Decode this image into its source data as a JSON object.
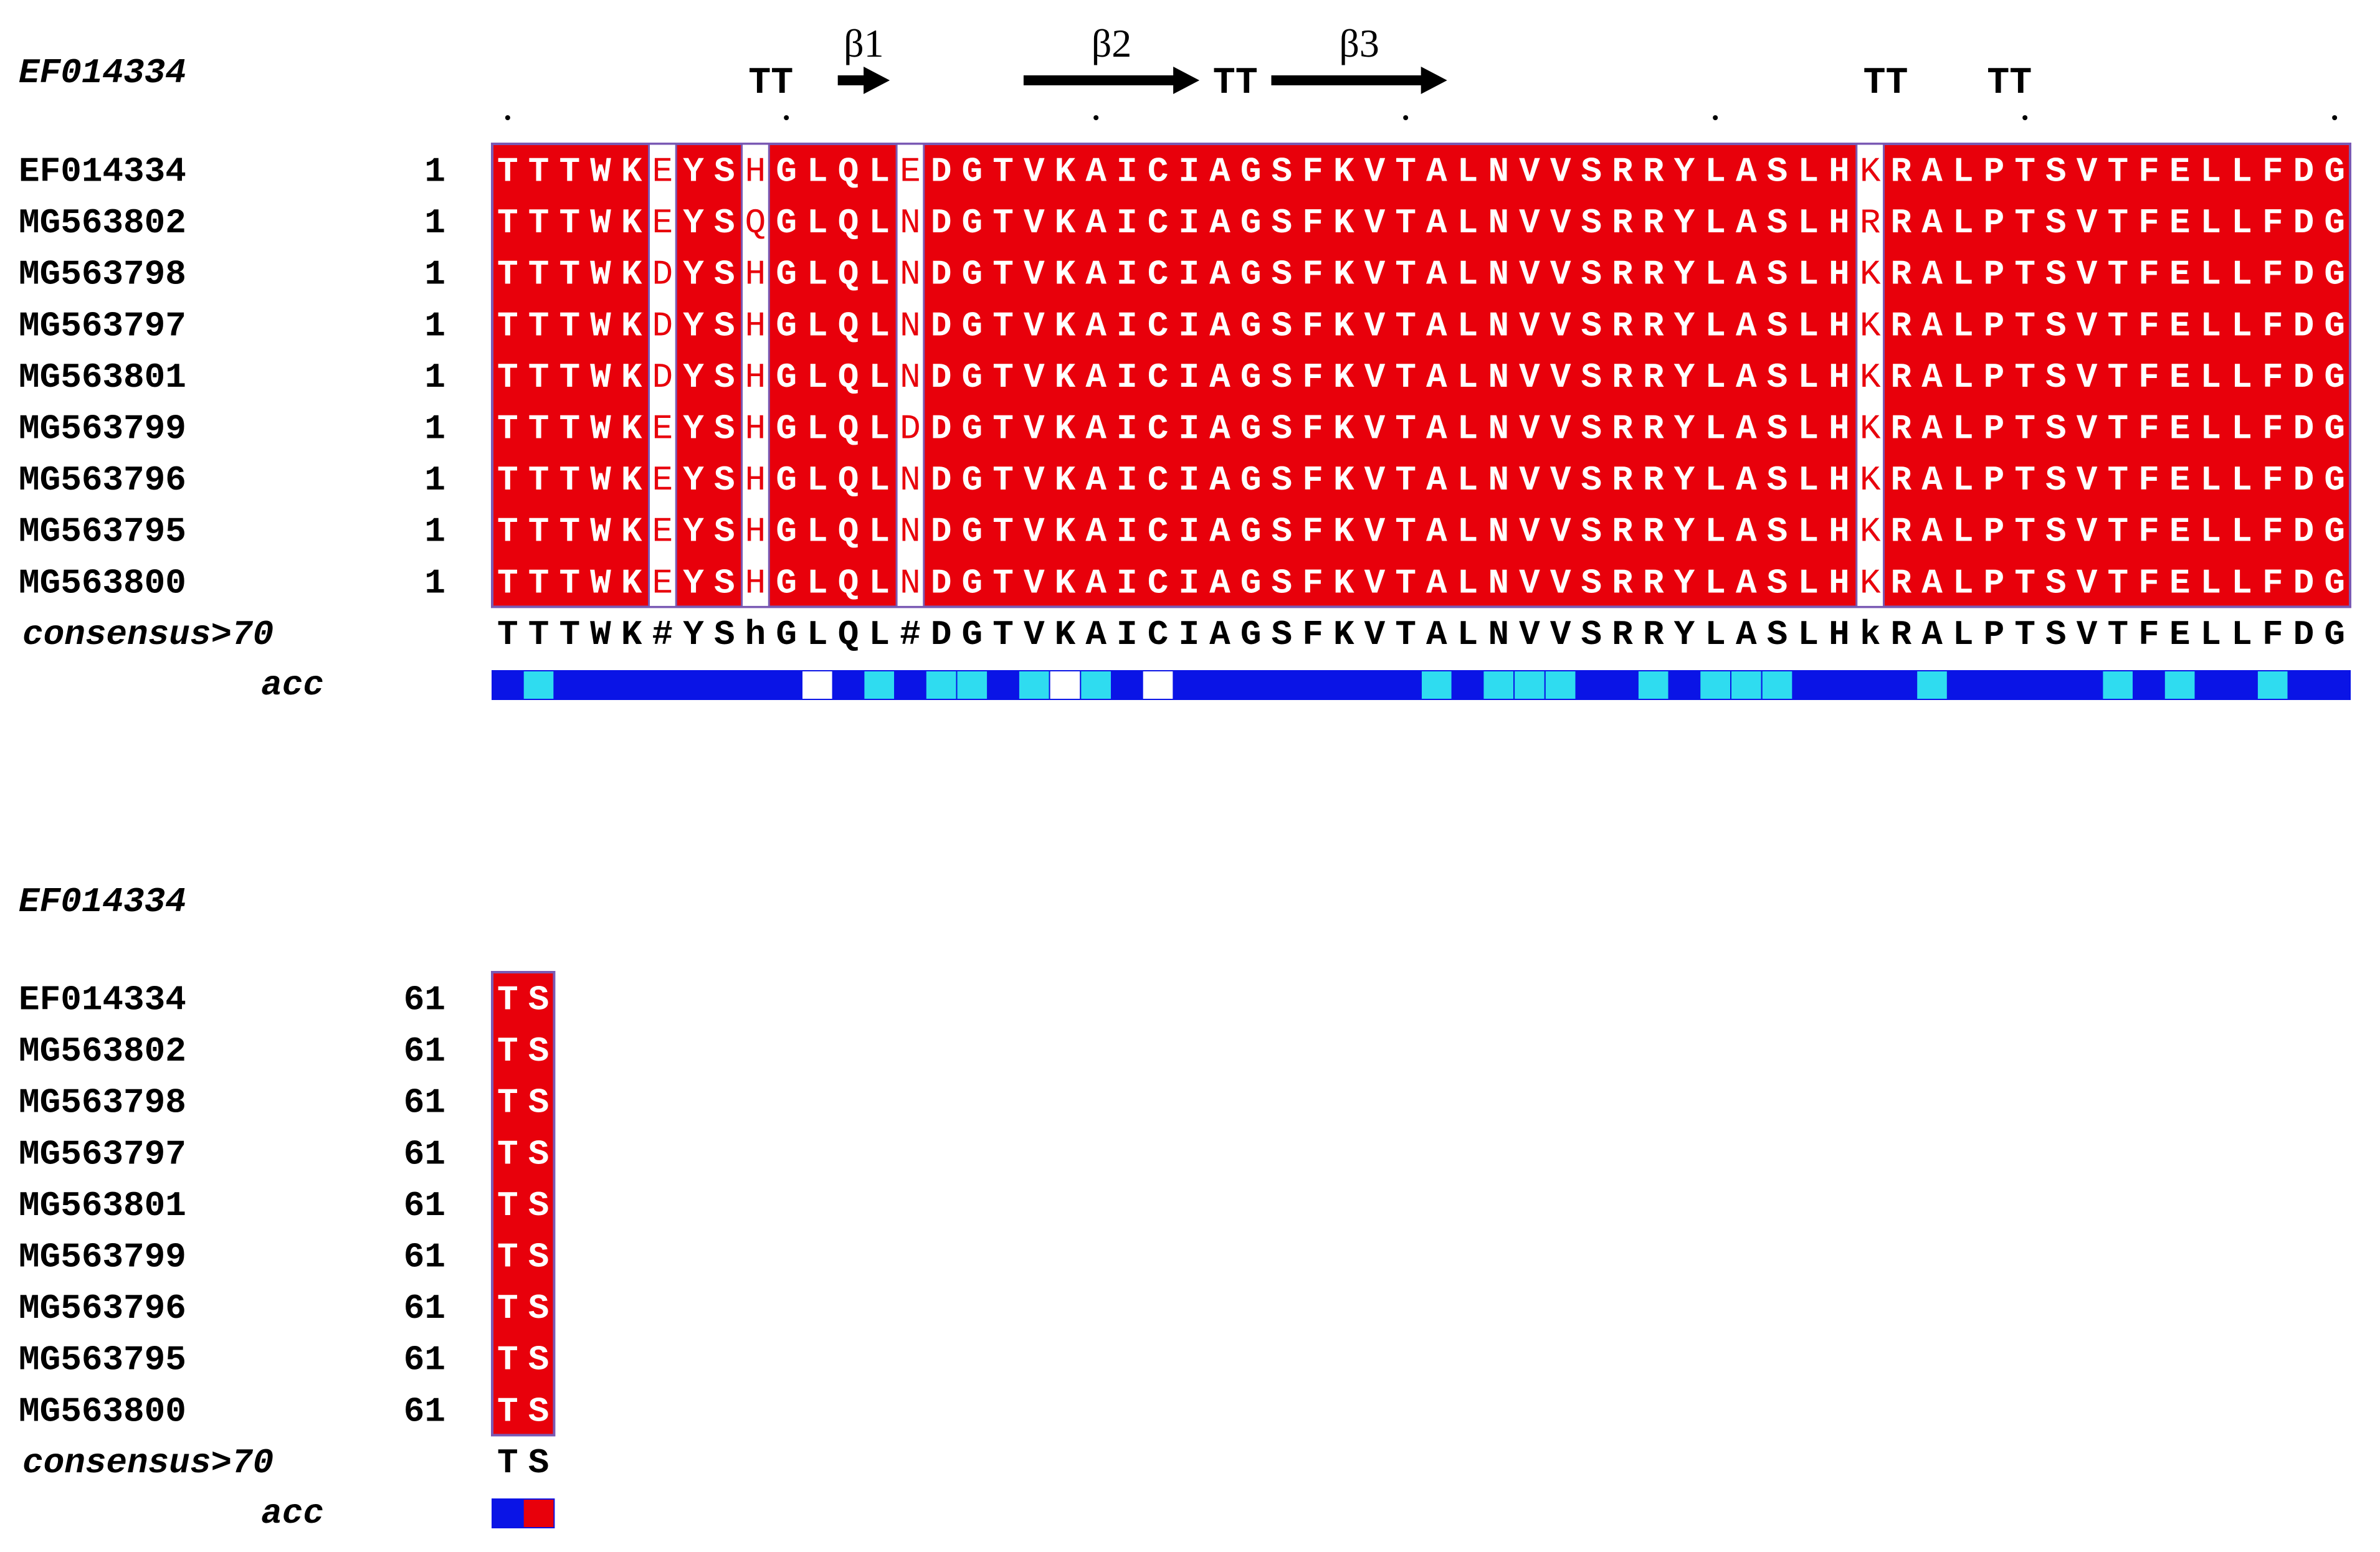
{
  "alignment": {
    "reference_label": "EF014334",
    "consensus_label": "consensus>70",
    "acc_label": "acc",
    "colors": {
      "conserved_bg": "#e8000b",
      "conserved_text": "#ffffff",
      "variable_text": "#e8000b",
      "block_border": "#7a5ab4",
      "acc_blue": "#0a14e6",
      "acc_cyan": "#2fdcf0",
      "acc_white": "#ffffff",
      "acc_red": "#e8000b"
    },
    "blocks": [
      {
        "start_positions": [
          "1",
          "1",
          "1",
          "1",
          "1",
          "1",
          "1",
          "1",
          "1"
        ],
        "sequences": [
          {
            "name": "EF014334",
            "residues": "TTTWKEYSHGLQLEDGTVKAICIAGSFKVTALNVVSRRYLASLHKRALPTSVTFELLFDG"
          },
          {
            "name": "MG563802",
            "residues": "TTTWKEYSQGLQLNDGTVKAICIAGSFKVTALNVVSRRYLASLHRRALPTSVTFELLFDG"
          },
          {
            "name": "MG563798",
            "residues": "TTTWKDYSHGLQLNDGTVKAICIAGSFKVTALNVVSRRYLASLHKRALPTSVTFELLFDG"
          },
          {
            "name": "MG563797",
            "residues": "TTTWKDYSHGLQLNDGTVKAICIAGSFKVTALNVVSRRYLASLHKRALPTSVTFELLFDG"
          },
          {
            "name": "MG563801",
            "residues": "TTTWKDYSHGLQLNDGTVKAICIAGSFKVTALNVVSRRYLASLHKRALPTSVTFELLFDG"
          },
          {
            "name": "MG563799",
            "residues": "TTTWKEYSHGLQLDDGTVKAICIAGSFKVTALNVVSRRYLASLHKRALPTSVTFELLFDG"
          },
          {
            "name": "MG563796",
            "residues": "TTTWKEYSHGLQLNDGTVKAICIAGSFKVTALNVVSRRYLASLHKRALPTSVTFELLFDG"
          },
          {
            "name": "MG563795",
            "residues": "TTTWKEYSHGLQLNDGTVKAICIAGSFKVTALNVVSRRYLASLHKRALPTSVTFELLFDG"
          },
          {
            "name": "MG563800",
            "residues": "TTTWKEYSHGLQLNDGTVKAICIAGSFKVTALNVVSRRYLASLHKRALPTSVTFELLFDG"
          }
        ],
        "consensus": "TTTWK#YShGLQL#DGTVKAICIAGSFKVTALNVVSRRYLASLHkRALPTSVTFELLFDG",
        "variable_columns": [
          6,
          9,
          14,
          45
        ],
        "acc": [
          "b",
          "c",
          "b",
          "b",
          "b",
          "b",
          "b",
          "b",
          "b",
          "b",
          "w",
          "b",
          "c",
          "b",
          "c",
          "c",
          "b",
          "c",
          "w",
          "c",
          "b",
          "w",
          "b",
          "b",
          "b",
          "b",
          "b",
          "b",
          "b",
          "b",
          "c",
          "b",
          "c",
          "c",
          "c",
          "b",
          "b",
          "c",
          "b",
          "c",
          "c",
          "c",
          "b",
          "b",
          "b",
          "b",
          "c",
          "b",
          "b",
          "b",
          "b",
          "b",
          "c",
          "b",
          "c",
          "b",
          "b",
          "c",
          "b",
          "b"
        ],
        "secondary_structure": {
          "strands": [
            {
              "label": "β1",
              "start": 12,
              "end": 13
            },
            {
              "label": "β2",
              "start": 18,
              "end": 23
            },
            {
              "label": "β3",
              "start": 26,
              "end": 31
            }
          ],
          "turns": [
            {
              "label": "TT",
              "start": 9,
              "end": 10
            },
            {
              "label": "TT",
              "start": 24,
              "end": 25
            },
            {
              "label": "TT",
              "start": 45,
              "end": 46
            },
            {
              "label": "TT",
              "start": 49,
              "end": 50
            }
          ],
          "ruler_dot_columns": [
            1,
            10,
            20,
            30,
            40,
            50,
            60
          ]
        }
      },
      {
        "start_positions": [
          "61",
          "61",
          "61",
          "61",
          "61",
          "61",
          "61",
          "61",
          "61"
        ],
        "sequences": [
          {
            "name": "EF014334",
            "residues": "TS"
          },
          {
            "name": "MG563802",
            "residues": "TS"
          },
          {
            "name": "MG563798",
            "residues": "TS"
          },
          {
            "name": "MG563797",
            "residues": "TS"
          },
          {
            "name": "MG563801",
            "residues": "TS"
          },
          {
            "name": "MG563799",
            "residues": "TS"
          },
          {
            "name": "MG563796",
            "residues": "TS"
          },
          {
            "name": "MG563795",
            "residues": "TS"
          },
          {
            "name": "MG563800",
            "residues": "TS"
          }
        ],
        "consensus": "TS",
        "variable_columns": [],
        "acc": [
          "b",
          "r"
        ],
        "secondary_structure": {
          "strands": [],
          "turns": [],
          "ruler_dot_columns": []
        }
      }
    ]
  }
}
